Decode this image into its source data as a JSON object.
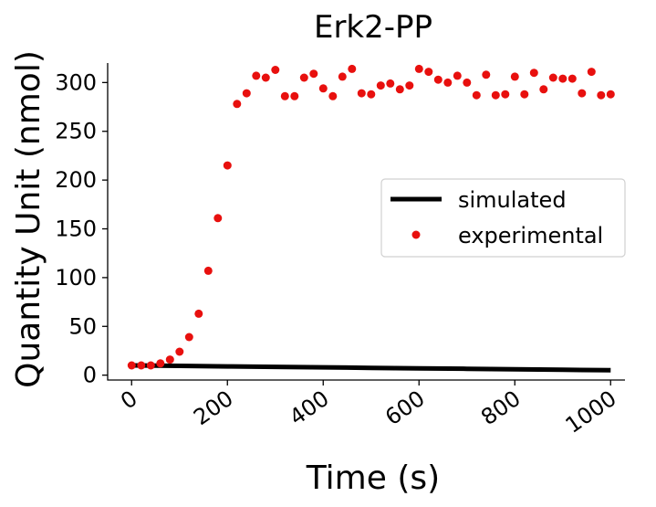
{
  "chart_data": {
    "type": "line",
    "title": "Erk2-PP",
    "xlabel": "Time (s)",
    "ylabel": "Quantity Unit (nmol)",
    "xlim": [
      -50,
      1030
    ],
    "ylim": [
      -5,
      320
    ],
    "xticks": [
      0,
      200,
      400,
      600,
      800,
      1000
    ],
    "yticks": [
      0,
      50,
      100,
      150,
      200,
      250,
      300
    ],
    "grid": false,
    "legend_position": "right",
    "series": [
      {
        "name": "simulated",
        "style": "line",
        "color": "#000000",
        "x": [
          0,
          100,
          200,
          300,
          400,
          500,
          600,
          700,
          800,
          900,
          1000
        ],
        "y": [
          10,
          9.5,
          9,
          8.5,
          8,
          7.5,
          7,
          6.5,
          6,
          5.5,
          5
        ]
      },
      {
        "name": "experimental",
        "style": "scatter",
        "color": "#e8100e",
        "x": [
          0,
          20,
          40,
          60,
          80,
          100,
          120,
          140,
          160,
          180,
          200,
          220,
          240,
          260,
          280,
          300,
          320,
          340,
          360,
          380,
          400,
          420,
          440,
          460,
          480,
          500,
          520,
          540,
          560,
          580,
          600,
          620,
          640,
          660,
          680,
          700,
          720,
          740,
          760,
          780,
          800,
          820,
          840,
          860,
          880,
          900,
          920,
          940,
          960,
          980,
          1000
        ],
        "y": [
          10,
          10,
          10,
          12,
          16,
          24,
          39,
          63,
          107,
          161,
          215,
          278,
          289,
          307,
          305,
          313,
          286,
          286,
          305,
          309,
          294,
          286,
          306,
          314,
          289,
          288,
          297,
          299,
          293,
          297,
          314,
          311,
          303,
          300,
          307,
          300,
          287,
          308,
          287,
          288,
          306,
          288,
          310,
          293,
          305,
          304,
          304,
          289,
          311,
          287,
          288
        ]
      }
    ]
  }
}
